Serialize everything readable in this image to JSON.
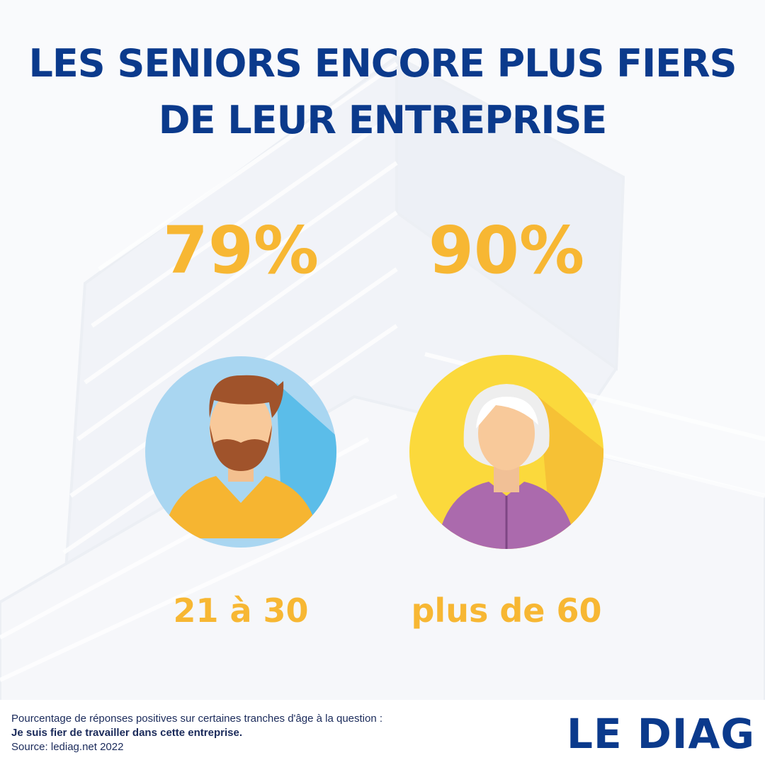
{
  "title": [
    "LES SENIORS ENCORE PLUS FIERS",
    "DE LEUR ENTREPRISE"
  ],
  "stats": [
    {
      "value": "79%",
      "label": "21 à 30"
    },
    {
      "value": "90%",
      "label": "plus de 60"
    }
  ],
  "footer": {
    "note": "Pourcentage de réponses positives sur certaines tranches d'âge  à la question :",
    "question": "Je suis fier de travailler dans cette entreprise.",
    "source": "Source: lediag.net 2022"
  },
  "logo": "LE DIAG"
}
